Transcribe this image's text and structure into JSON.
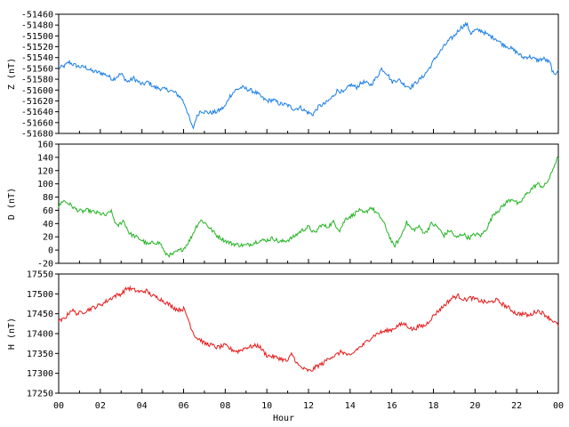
{
  "chart_data": [
    {
      "type": "line",
      "ylabel": "Z (nT)",
      "ylim": [
        -51680,
        -51460
      ],
      "yticks": [
        "-51460",
        "-51480",
        "-51500",
        "-51520",
        "-51540",
        "-51560",
        "-51580",
        "-51600",
        "-51620",
        "-51640",
        "-51660",
        "-51680"
      ],
      "color": "#1a7ee6",
      "x": [
        0,
        0.3,
        0.5,
        0.7,
        1.0,
        1.3,
        1.6,
        2.0,
        2.3,
        2.6,
        3.0,
        3.3,
        3.6,
        4.0,
        4.3,
        4.6,
        5.0,
        5.3,
        5.6,
        5.9,
        6.1,
        6.3,
        6.45,
        6.6,
        6.8,
        7.0,
        7.3,
        7.6,
        8.0,
        8.2,
        8.5,
        8.8,
        9.2,
        9.5,
        9.8,
        10.0,
        10.3,
        10.6,
        11.0,
        11.3,
        11.6,
        11.9,
        12.2,
        12.5,
        12.8,
        13.1,
        13.4,
        13.7,
        14.0,
        14.3,
        14.6,
        15.0,
        15.3,
        15.5,
        15.8,
        16.0,
        16.3,
        16.6,
        16.9,
        17.2,
        17.5,
        17.8,
        18.1,
        18.4,
        18.7,
        19.0,
        19.3,
        19.6,
        19.8,
        20.0,
        20.3,
        20.6,
        21.0,
        21.3,
        21.6,
        22.0,
        22.3,
        22.6,
        23.0,
        23.3,
        23.6,
        23.8,
        24.0
      ],
      "values": [
        -51560,
        -51555,
        -51548,
        -51553,
        -51557,
        -51558,
        -51565,
        -51568,
        -51572,
        -51580,
        -51570,
        -51585,
        -51578,
        -51590,
        -51585,
        -51595,
        -51598,
        -51600,
        -51605,
        -51615,
        -51630,
        -51655,
        -51672,
        -51652,
        -51638,
        -51640,
        -51642,
        -51640,
        -51630,
        -51612,
        -51600,
        -51595,
        -51600,
        -51605,
        -51615,
        -51620,
        -51618,
        -51625,
        -51628,
        -51635,
        -51632,
        -51640,
        -51645,
        -51630,
        -51625,
        -51615,
        -51600,
        -51605,
        -51590,
        -51595,
        -51585,
        -51590,
        -51575,
        -51560,
        -51570,
        -51585,
        -51580,
        -51590,
        -51595,
        -51585,
        -51575,
        -51560,
        -51540,
        -51525,
        -51510,
        -51500,
        -51485,
        -51478,
        -51495,
        -51490,
        -51490,
        -51498,
        -51505,
        -51515,
        -51520,
        -51530,
        -51540,
        -51538,
        -51545,
        -51542,
        -51550,
        -51575,
        -51560
      ]
    },
    {
      "type": "line",
      "ylabel": "D (nT)",
      "ylim": [
        -20,
        160
      ],
      "yticks": [
        "160",
        "140",
        "120",
        "100",
        "80",
        "60",
        "40",
        "20",
        "0",
        "-20"
      ],
      "color": "#22b422",
      "x": [
        0,
        0.2,
        0.5,
        0.8,
        1.1,
        1.4,
        1.7,
        2.0,
        2.3,
        2.5,
        2.8,
        3.1,
        3.4,
        3.7,
        4.0,
        4.3,
        4.6,
        4.9,
        5.1,
        5.4,
        5.7,
        6.0,
        6.3,
        6.6,
        6.8,
        7.0,
        7.3,
        7.6,
        8.0,
        8.3,
        8.6,
        9.0,
        9.3,
        9.6,
        10.0,
        10.3,
        10.6,
        11.0,
        11.3,
        11.6,
        12.0,
        12.3,
        12.6,
        12.9,
        13.2,
        13.5,
        13.8,
        14.1,
        14.4,
        14.7,
        15.0,
        15.2,
        15.5,
        15.7,
        15.9,
        16.1,
        16.4,
        16.7,
        17.0,
        17.3,
        17.6,
        17.9,
        18.2,
        18.5,
        18.8,
        19.1,
        19.4,
        19.7,
        20.0,
        20.3,
        20.6,
        20.9,
        21.2,
        21.5,
        21.8,
        22.1,
        22.4,
        22.7,
        23.0,
        23.3,
        23.6,
        23.8,
        24.0
      ],
      "values": [
        65,
        75,
        70,
        62,
        58,
        60,
        57,
        55,
        52,
        60,
        35,
        45,
        25,
        20,
        15,
        8,
        12,
        10,
        -5,
        -8,
        -2,
        2,
        15,
        35,
        45,
        42,
        32,
        22,
        14,
        10,
        8,
        7,
        10,
        14,
        15,
        18,
        12,
        15,
        20,
        28,
        35,
        25,
        38,
        35,
        42,
        30,
        48,
        52,
        60,
        55,
        65,
        58,
        48,
        35,
        20,
        5,
        18,
        42,
        30,
        35,
        25,
        40,
        35,
        22,
        30,
        18,
        25,
        18,
        24,
        22,
        35,
        55,
        62,
        72,
        78,
        68,
        82,
        92,
        100,
        95,
        110,
        128,
        140
      ]
    },
    {
      "type": "line",
      "ylabel": "H (nT)",
      "xlabel": "Hour",
      "ylim": [
        17250,
        17550
      ],
      "yticks": [
        "17550",
        "17500",
        "17450",
        "17400",
        "17350",
        "17300",
        "17250"
      ],
      "xticks": [
        "00",
        "02",
        "04",
        "06",
        "08",
        "10",
        "12",
        "14",
        "16",
        "18",
        "20",
        "22",
        "00"
      ],
      "xlim": [
        0,
        24
      ],
      "color": "#e61a1a",
      "x": [
        0,
        0.2,
        0.4,
        0.6,
        0.9,
        1.2,
        1.5,
        1.8,
        2.1,
        2.4,
        2.7,
        3.0,
        3.3,
        3.6,
        3.9,
        4.2,
        4.5,
        4.8,
        5.1,
        5.4,
        5.7,
        6.0,
        6.2,
        6.4,
        6.6,
        6.8,
        7.0,
        7.3,
        7.6,
        8.0,
        8.3,
        8.6,
        9.0,
        9.3,
        9.6,
        10.0,
        10.3,
        10.6,
        11.0,
        11.2,
        11.5,
        11.8,
        12.1,
        12.4,
        12.7,
        13.0,
        13.3,
        13.6,
        14.0,
        14.3,
        14.6,
        15.0,
        15.3,
        15.6,
        16.0,
        16.3,
        16.6,
        17.0,
        17.3,
        17.6,
        18.0,
        18.3,
        18.6,
        18.9,
        19.2,
        19.5,
        19.8,
        20.1,
        20.4,
        20.7,
        21.0,
        21.3,
        21.6,
        22.0,
        22.3,
        22.6,
        23.0,
        23.3,
        23.6,
        23.8,
        24.0
      ],
      "values": [
        17430,
        17435,
        17445,
        17460,
        17450,
        17455,
        17462,
        17468,
        17475,
        17485,
        17495,
        17500,
        17515,
        17510,
        17505,
        17508,
        17495,
        17490,
        17480,
        17470,
        17460,
        17462,
        17440,
        17410,
        17390,
        17385,
        17375,
        17372,
        17365,
        17370,
        17360,
        17355,
        17365,
        17368,
        17370,
        17345,
        17342,
        17338,
        17330,
        17350,
        17320,
        17310,
        17305,
        17318,
        17325,
        17340,
        17345,
        17355,
        17342,
        17360,
        17370,
        17390,
        17400,
        17405,
        17410,
        17420,
        17425,
        17410,
        17418,
        17420,
        17445,
        17460,
        17475,
        17490,
        17495,
        17485,
        17490,
        17485,
        17480,
        17478,
        17485,
        17475,
        17465,
        17450,
        17450,
        17445,
        17458,
        17450,
        17438,
        17430,
        17420
      ]
    }
  ]
}
